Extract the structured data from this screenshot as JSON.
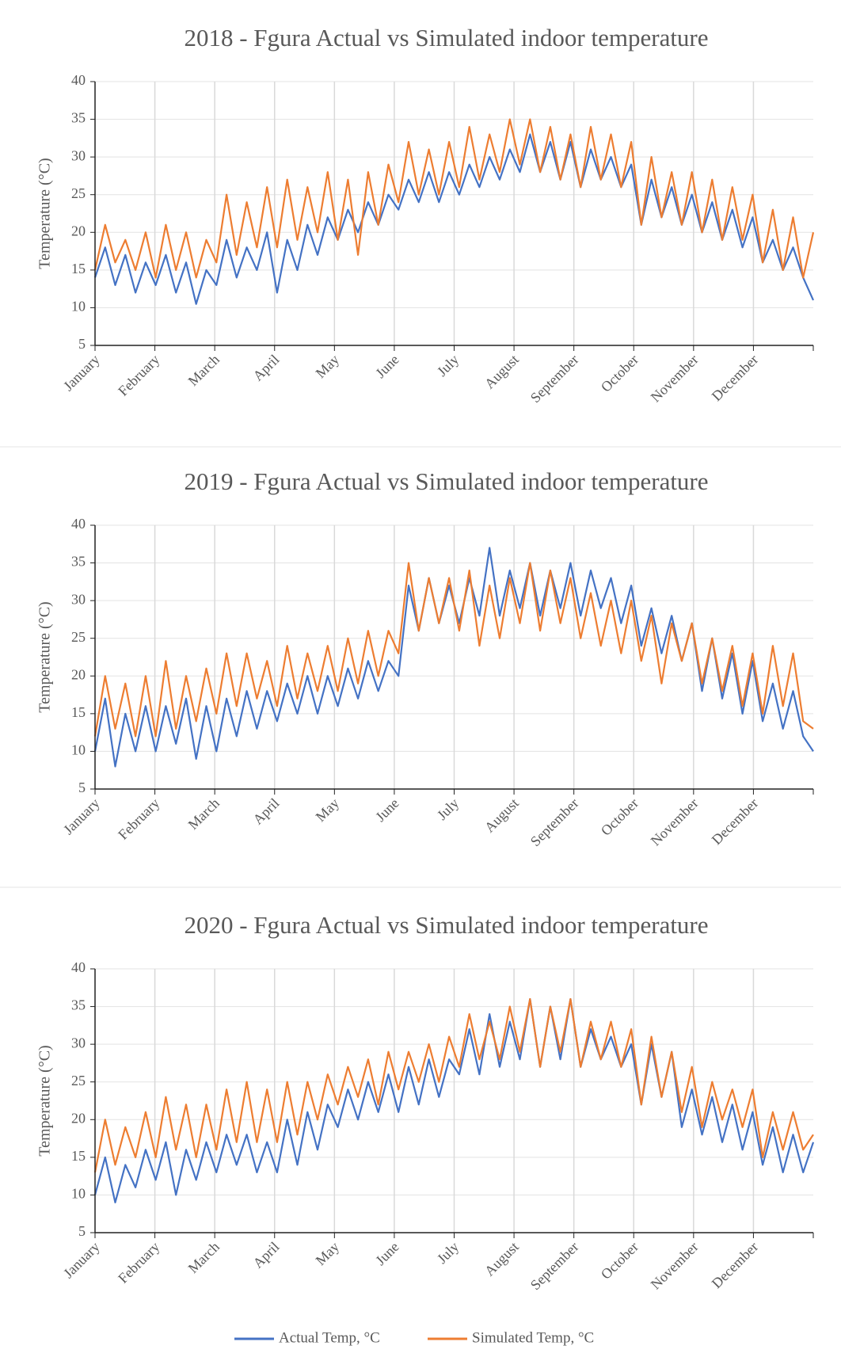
{
  "chart_data": [
    {
      "type": "line",
      "title": "2018 - Fgura Actual vs Simulated indoor temperature",
      "y_label": "Temperature (°C)",
      "xtick_labels": [
        "January",
        "February",
        "March",
        "April",
        "May",
        "June",
        "July",
        "August",
        "September",
        "October",
        "November",
        "December"
      ],
      "ylim": [
        5,
        40
      ],
      "yticks": [
        5,
        10,
        15,
        20,
        25,
        30,
        35,
        40
      ],
      "grid": true,
      "series": [
        {
          "name": "Actual Temp, °C",
          "color": "#4472c4",
          "values": [
            14,
            18,
            13,
            17,
            12,
            16,
            13,
            17,
            12,
            16,
            10.5,
            15,
            13,
            19,
            14,
            18,
            15,
            20,
            12,
            19,
            15,
            21,
            17,
            22,
            19,
            23,
            20,
            24,
            21,
            25,
            23,
            27,
            24,
            28,
            24,
            28,
            25,
            29,
            26,
            30,
            27,
            31,
            28,
            33,
            28,
            32,
            27,
            32,
            26,
            31,
            27,
            30,
            26,
            29,
            21,
            27,
            22,
            26,
            21,
            25,
            20,
            24,
            19,
            23,
            18,
            22,
            16,
            19,
            15,
            18,
            14,
            11
          ]
        },
        {
          "name": "Simulated Temp, °C",
          "color": "#ed7d31",
          "values": [
            15,
            21,
            16,
            19,
            15,
            20,
            14,
            21,
            15,
            20,
            14,
            19,
            16,
            25,
            17,
            24,
            18,
            26,
            18,
            27,
            19,
            26,
            20,
            28,
            19,
            27,
            17,
            28,
            21,
            29,
            24,
            32,
            25,
            31,
            25,
            32,
            26,
            34,
            27,
            33,
            28,
            35,
            29,
            35,
            28,
            34,
            27,
            33,
            26,
            34,
            27,
            33,
            26,
            32,
            21,
            30,
            22,
            28,
            21,
            28,
            20,
            27,
            19,
            26,
            19,
            25,
            16,
            23,
            15,
            22,
            14,
            20
          ]
        }
      ]
    },
    {
      "type": "line",
      "title": "2019 - Fgura Actual vs Simulated indoor temperature",
      "y_label": "Temperature (°C)",
      "xtick_labels": [
        "January",
        "February",
        "March",
        "April",
        "May",
        "June",
        "July",
        "August",
        "September",
        "October",
        "November",
        "December"
      ],
      "ylim": [
        5,
        40
      ],
      "yticks": [
        5,
        10,
        15,
        20,
        25,
        30,
        35,
        40
      ],
      "grid": true,
      "series": [
        {
          "name": "Actual Temp, °C",
          "color": "#4472c4",
          "values": [
            10,
            17,
            8,
            15,
            10,
            16,
            10,
            16,
            11,
            17,
            9,
            16,
            10,
            17,
            12,
            18,
            13,
            18,
            14,
            19,
            15,
            20,
            15,
            20,
            16,
            21,
            17,
            22,
            18,
            22,
            20,
            32,
            26,
            33,
            27,
            32,
            27,
            33,
            28,
            37,
            28,
            34,
            29,
            35,
            28,
            34,
            29,
            35,
            28,
            34,
            29,
            33,
            27,
            32,
            24,
            29,
            23,
            28,
            22,
            27,
            18,
            25,
            17,
            23,
            15,
            22,
            14,
            19,
            13,
            18,
            12,
            10
          ]
        },
        {
          "name": "Simulated Temp, °C",
          "color": "#ed7d31",
          "values": [
            12,
            20,
            13,
            19,
            12,
            20,
            12,
            22,
            13,
            20,
            14,
            21,
            15,
            23,
            16,
            23,
            17,
            22,
            16,
            24,
            17,
            23,
            18,
            24,
            18,
            25,
            19,
            26,
            20,
            26,
            23,
            35,
            26,
            33,
            27,
            33,
            26,
            34,
            24,
            32,
            25,
            33,
            27,
            35,
            26,
            34,
            27,
            33,
            25,
            31,
            24,
            30,
            23,
            30,
            22,
            28,
            19,
            27,
            22,
            27,
            19,
            25,
            18,
            24,
            16,
            23,
            15,
            24,
            16,
            23,
            14,
            13
          ]
        }
      ]
    },
    {
      "type": "line",
      "title": "2020 - Fgura Actual vs Simulated indoor temperature",
      "y_label": "Temperature (°C)",
      "xtick_labels": [
        "January",
        "February",
        "March",
        "April",
        "May",
        "June",
        "July",
        "August",
        "September",
        "October",
        "November",
        "December"
      ],
      "ylim": [
        5,
        40
      ],
      "yticks": [
        5,
        10,
        15,
        20,
        25,
        30,
        35,
        40
      ],
      "grid": true,
      "series": [
        {
          "name": "Actual Temp, °C",
          "color": "#4472c4",
          "values": [
            10,
            15,
            9,
            14,
            11,
            16,
            12,
            17,
            10,
            16,
            12,
            17,
            13,
            18,
            14,
            18,
            13,
            17,
            13,
            20,
            14,
            21,
            16,
            22,
            19,
            24,
            20,
            25,
            21,
            26,
            21,
            27,
            22,
            28,
            23,
            28,
            26,
            32,
            26,
            34,
            27,
            33,
            28,
            36,
            27,
            35,
            28,
            36,
            27,
            32,
            28,
            31,
            27,
            30,
            22,
            30,
            23,
            29,
            19,
            24,
            18,
            23,
            17,
            22,
            16,
            21,
            14,
            19,
            13,
            18,
            13,
            17
          ]
        },
        {
          "name": "Simulated Temp, °C",
          "color": "#ed7d31",
          "values": [
            13,
            20,
            14,
            19,
            15,
            21,
            15,
            23,
            16,
            22,
            15,
            22,
            16,
            24,
            17,
            25,
            17,
            24,
            17,
            25,
            18,
            25,
            20,
            26,
            22,
            27,
            23,
            28,
            22,
            29,
            24,
            29,
            25,
            30,
            25,
            31,
            27,
            34,
            28,
            33,
            28,
            35,
            29,
            36,
            27,
            35,
            29,
            36,
            27,
            33,
            28,
            33,
            27,
            32,
            22,
            31,
            23,
            29,
            21,
            27,
            19,
            25,
            20,
            24,
            19,
            24,
            15,
            21,
            16,
            21,
            16,
            18
          ]
        }
      ]
    }
  ]
}
